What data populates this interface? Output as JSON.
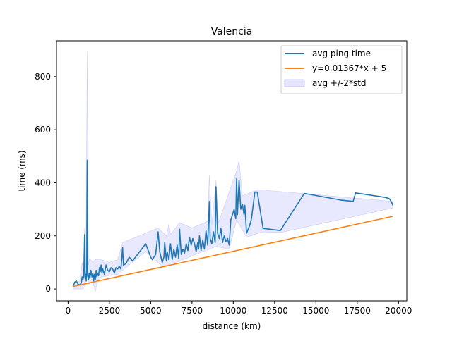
{
  "chart_data": {
    "type": "line",
    "title": "Valencia",
    "xlabel": "distance (km)",
    "ylabel": "time (ms)",
    "xlim": [
      -700,
      20500
    ],
    "ylim": [
      -45,
      935
    ],
    "xticks": [
      0,
      2500,
      5000,
      7500,
      10000,
      12500,
      15000,
      17500,
      20000
    ],
    "yticks": [
      0,
      200,
      400,
      600,
      800
    ],
    "grid": false,
    "legend_position": "top-right",
    "colors": {
      "avg": "#1f77b4",
      "fit": "#ff7f0e",
      "band_fill": "#ccccff",
      "band_edge": "#a8a8ee"
    },
    "series": [
      {
        "name": "avg ping time",
        "kind": "line",
        "points": [
          [
            300,
            8
          ],
          [
            400,
            25
          ],
          [
            500,
            30
          ],
          [
            600,
            18
          ],
          [
            700,
            15
          ],
          [
            800,
            22
          ],
          [
            850,
            45
          ],
          [
            900,
            35
          ],
          [
            950,
            48
          ],
          [
            1000,
            205
          ],
          [
            1030,
            40
          ],
          [
            1060,
            55
          ],
          [
            1100,
            30
          ],
          [
            1130,
            75
          ],
          [
            1160,
            485
          ],
          [
            1190,
            50
          ],
          [
            1230,
            35
          ],
          [
            1280,
            60
          ],
          [
            1320,
            40
          ],
          [
            1380,
            70
          ],
          [
            1450,
            45
          ],
          [
            1500,
            60
          ],
          [
            1550,
            30
          ],
          [
            1600,
            55
          ],
          [
            1650,
            35
          ],
          [
            1700,
            70
          ],
          [
            1750,
            45
          ],
          [
            1800,
            60
          ],
          [
            1850,
            50
          ],
          [
            1900,
            80
          ],
          [
            1950,
            65
          ],
          [
            2000,
            90
          ],
          [
            2050,
            60
          ],
          [
            2100,
            75
          ],
          [
            2200,
            55
          ],
          [
            2300,
            90
          ],
          [
            2400,
            70
          ],
          [
            2500,
            65
          ],
          [
            2600,
            80
          ],
          [
            2700,
            75
          ],
          [
            2800,
            60
          ],
          [
            2900,
            80
          ],
          [
            3000,
            75
          ],
          [
            3100,
            85
          ],
          [
            3200,
            75
          ],
          [
            3300,
            155
          ],
          [
            3350,
            90
          ],
          [
            3500,
            95
          ],
          [
            3700,
            120
          ],
          [
            3900,
            105
          ],
          [
            4700,
            170
          ],
          [
            5000,
            120
          ],
          [
            5100,
            110
          ],
          [
            5300,
            130
          ],
          [
            5450,
            215
          ],
          [
            5550,
            140
          ],
          [
            5700,
            100
          ],
          [
            5800,
            120
          ],
          [
            5850,
            175
          ],
          [
            5950,
            105
          ],
          [
            6000,
            140
          ],
          [
            6100,
            110
          ],
          [
            6200,
            170
          ],
          [
            6300,
            110
          ],
          [
            6400,
            150
          ],
          [
            6500,
            120
          ],
          [
            6600,
            165
          ],
          [
            6700,
            115
          ],
          [
            6750,
            225
          ],
          [
            6850,
            130
          ],
          [
            6950,
            150
          ],
          [
            7050,
            135
          ],
          [
            7150,
            170
          ],
          [
            7250,
            145
          ],
          [
            7350,
            195
          ],
          [
            7450,
            165
          ],
          [
            7550,
            190
          ],
          [
            7650,
            170
          ],
          [
            7750,
            140
          ],
          [
            7850,
            175
          ],
          [
            7900,
            150
          ],
          [
            7950,
            200
          ],
          [
            8050,
            145
          ],
          [
            8150,
            185
          ],
          [
            8250,
            150
          ],
          [
            8350,
            220
          ],
          [
            8450,
            165
          ],
          [
            8550,
            330
          ],
          [
            8600,
            190
          ],
          [
            8700,
            170
          ],
          [
            8800,
            215
          ],
          [
            8900,
            175
          ],
          [
            8950,
            385
          ],
          [
            9050,
            210
          ],
          [
            9150,
            190
          ],
          [
            9250,
            230
          ],
          [
            9350,
            175
          ],
          [
            9450,
            200
          ],
          [
            9550,
            180
          ],
          [
            9650,
            190
          ],
          [
            9750,
            165
          ],
          [
            9850,
            260
          ],
          [
            9950,
            280
          ],
          [
            10050,
            300
          ],
          [
            10150,
            265
          ],
          [
            10200,
            415
          ],
          [
            10250,
            280
          ],
          [
            10350,
            410
          ],
          [
            10450,
            300
          ],
          [
            10550,
            320
          ],
          [
            10650,
            280
          ],
          [
            10700,
            315
          ],
          [
            10800,
            210
          ],
          [
            10900,
            225
          ],
          [
            11000,
            240
          ],
          [
            11100,
            265
          ],
          [
            11300,
            365
          ],
          [
            11450,
            365
          ],
          [
            11800,
            228
          ],
          [
            12850,
            220
          ],
          [
            14300,
            360
          ],
          [
            16500,
            335
          ],
          [
            17250,
            330
          ],
          [
            17400,
            362
          ],
          [
            19200,
            345
          ],
          [
            19450,
            340
          ],
          [
            19600,
            325
          ],
          [
            19650,
            315
          ]
        ]
      },
      {
        "name": "y=0.01367*x + 5",
        "kind": "line",
        "points": [
          [
            300,
            9.1
          ],
          [
            19650,
            273.6
          ]
        ]
      },
      {
        "name": "avg +/-2*std",
        "kind": "band",
        "upper": [
          [
            300,
            15
          ],
          [
            700,
            30
          ],
          [
            850,
            100
          ],
          [
            950,
            60
          ],
          [
            1000,
            230
          ],
          [
            1080,
            80
          ],
          [
            1160,
            895
          ],
          [
            1230,
            90
          ],
          [
            1300,
            115
          ],
          [
            1500,
            100
          ],
          [
            1650,
            110
          ],
          [
            2000,
            110
          ],
          [
            2500,
            100
          ],
          [
            3000,
            110
          ],
          [
            3300,
            175
          ],
          [
            5450,
            230
          ],
          [
            5950,
            200
          ],
          [
            6100,
            245
          ],
          [
            6200,
            205
          ],
          [
            6750,
            250
          ],
          [
            7500,
            230
          ],
          [
            8450,
            255
          ],
          [
            8550,
            430
          ],
          [
            8700,
            240
          ],
          [
            8950,
            410
          ],
          [
            9100,
            250
          ],
          [
            10200,
            445
          ],
          [
            10350,
            485
          ],
          [
            10550,
            350
          ],
          [
            11450,
            375
          ],
          [
            19650,
            330
          ]
        ],
        "lower": [
          [
            300,
            0
          ],
          [
            900,
            0
          ],
          [
            1050,
            12
          ],
          [
            1160,
            80
          ],
          [
            1230,
            18
          ],
          [
            1500,
            25
          ],
          [
            1650,
            -10
          ],
          [
            1800,
            30
          ],
          [
            2000,
            45
          ],
          [
            3000,
            55
          ],
          [
            4700,
            140
          ],
          [
            5700,
            85
          ],
          [
            6750,
            105
          ],
          [
            8550,
            150
          ],
          [
            8950,
            160
          ],
          [
            9750,
            150
          ],
          [
            10200,
            260
          ],
          [
            10800,
            195
          ],
          [
            11800,
            215
          ],
          [
            12850,
            212
          ],
          [
            19650,
            305
          ]
        ]
      }
    ]
  }
}
